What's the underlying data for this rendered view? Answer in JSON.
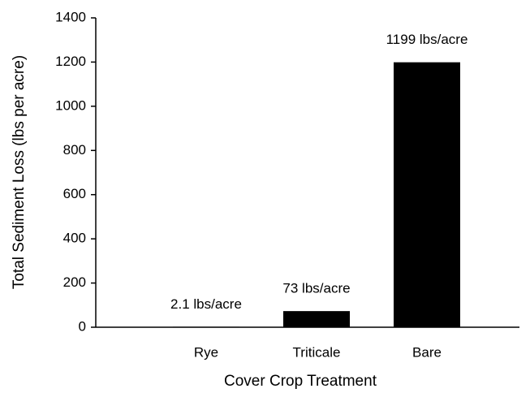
{
  "chart_data": {
    "type": "bar",
    "x_label": "Cover Crop Treatment",
    "y_label": "Total Sediment Loss (lbs per acre)",
    "categories": [
      "Rye",
      "Triticale",
      "Bare"
    ],
    "values": [
      2.1,
      73,
      1199
    ],
    "value_labels": [
      "2.1 lbs/acre",
      "73 lbs/acre",
      "1199 lbs/acre"
    ],
    "color": "#000000",
    "ylim": [
      0,
      1400
    ],
    "yticks": [
      0,
      200,
      400,
      600,
      800,
      1000,
      1200,
      1400
    ],
    "grid": false
  }
}
